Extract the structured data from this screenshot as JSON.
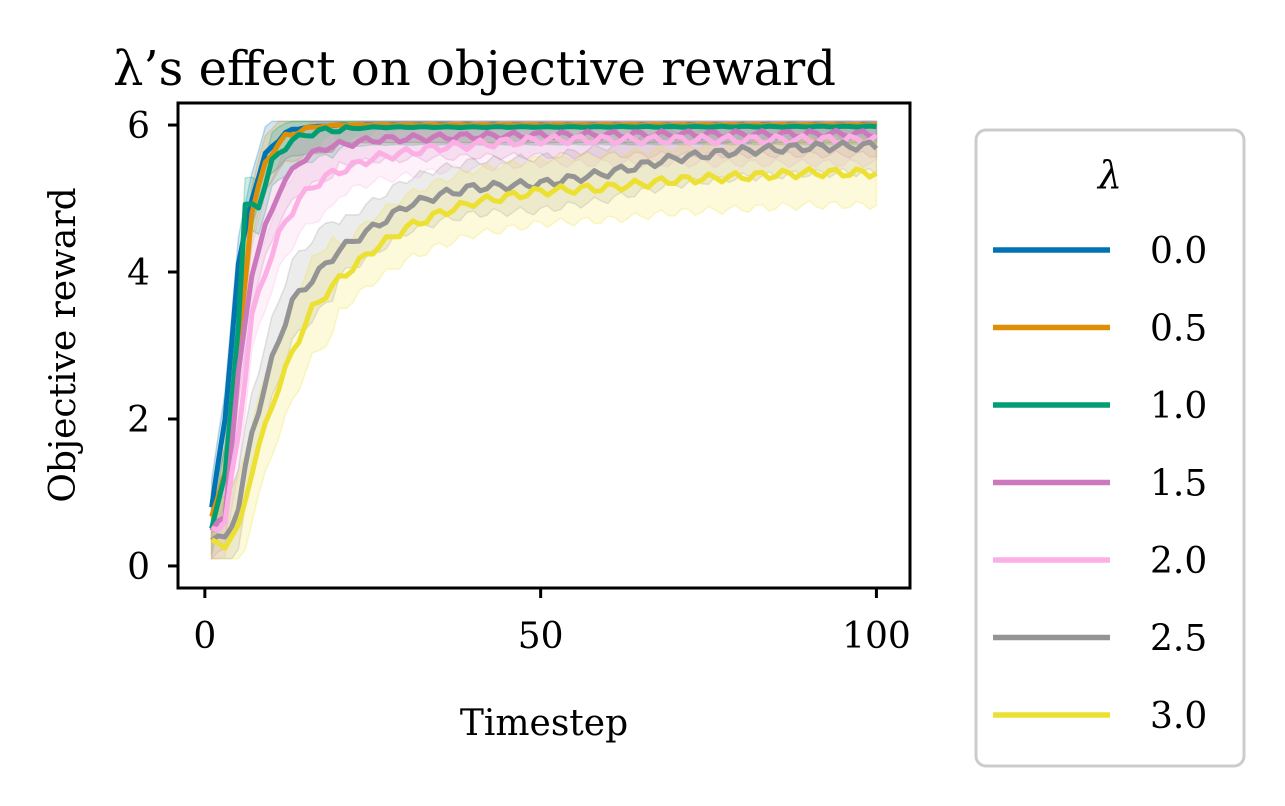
{
  "chart_data": {
    "type": "line",
    "title": "λ’s effect on objective reward",
    "xlabel": "Timestep",
    "ylabel": "Objective reward",
    "xlim": [
      -4,
      105
    ],
    "ylim": [
      -0.3,
      6.3
    ],
    "xticks": [
      0,
      50,
      100
    ],
    "yticks": [
      0,
      2,
      4,
      6
    ],
    "legend": {
      "title": "λ",
      "placement": "outside-right"
    },
    "shaded_band": true,
    "series": [
      {
        "name": "0.0",
        "color": "#0173b2",
        "points": [
          [
            1,
            0.8
          ],
          [
            3,
            2.0
          ],
          [
            5,
            4.1
          ],
          [
            7,
            5.0
          ],
          [
            9,
            5.6
          ],
          [
            12,
            5.9
          ],
          [
            15,
            5.97
          ],
          [
            20,
            6.0
          ],
          [
            100,
            6.0
          ]
        ],
        "band_width": 0.3
      },
      {
        "name": "0.5",
        "color": "#de8f05",
        "points": [
          [
            1,
            0.65
          ],
          [
            3,
            1.3
          ],
          [
            5,
            3.0
          ],
          [
            7,
            4.8
          ],
          [
            9,
            5.5
          ],
          [
            12,
            5.85
          ],
          [
            16,
            5.97
          ],
          [
            20,
            6.0
          ],
          [
            100,
            6.0
          ]
        ],
        "band_width": 0.3
      },
      {
        "name": "1.0",
        "color": "#029e73",
        "points": [
          [
            1,
            0.55
          ],
          [
            3,
            1.2
          ],
          [
            5,
            3.3
          ],
          [
            6,
            4.9
          ],
          [
            8,
            4.9
          ],
          [
            10,
            5.5
          ],
          [
            13,
            5.8
          ],
          [
            17,
            5.92
          ],
          [
            25,
            5.97
          ],
          [
            100,
            5.98
          ]
        ],
        "band_width": 0.3
      },
      {
        "name": "1.5",
        "color": "#cc78bc",
        "points": [
          [
            1,
            0.45
          ],
          [
            3,
            0.7
          ],
          [
            5,
            2.6
          ],
          [
            7,
            4.0
          ],
          [
            9,
            4.6
          ],
          [
            11,
            5.1
          ],
          [
            14,
            5.5
          ],
          [
            18,
            5.7
          ],
          [
            25,
            5.8
          ],
          [
            40,
            5.85
          ],
          [
            60,
            5.87
          ],
          [
            100,
            5.88
          ]
        ],
        "band_width": 0.35
      },
      {
        "name": "2.0",
        "color": "#fbafe4",
        "points": [
          [
            1,
            0.5
          ],
          [
            3,
            0.6
          ],
          [
            5,
            1.8
          ],
          [
            7,
            3.4
          ],
          [
            9,
            4.0
          ],
          [
            11,
            4.5
          ],
          [
            14,
            5.0
          ],
          [
            18,
            5.3
          ],
          [
            25,
            5.55
          ],
          [
            35,
            5.7
          ],
          [
            50,
            5.8
          ],
          [
            70,
            5.8
          ],
          [
            100,
            5.8
          ]
        ],
        "band_width": 0.4
      },
      {
        "name": "2.5",
        "color": "#949494",
        "points": [
          [
            1,
            0.4
          ],
          [
            3,
            0.35
          ],
          [
            5,
            0.8
          ],
          [
            7,
            1.8
          ],
          [
            10,
            2.8
          ],
          [
            13,
            3.6
          ],
          [
            16,
            3.9
          ],
          [
            20,
            4.3
          ],
          [
            25,
            4.6
          ],
          [
            30,
            4.9
          ],
          [
            35,
            5.05
          ],
          [
            40,
            5.15
          ],
          [
            50,
            5.2
          ],
          [
            60,
            5.35
          ],
          [
            70,
            5.55
          ],
          [
            80,
            5.65
          ],
          [
            90,
            5.7
          ],
          [
            100,
            5.72
          ]
        ],
        "band_width": 0.45
      },
      {
        "name": "3.0",
        "color": "#ece133",
        "points": [
          [
            1,
            0.3
          ],
          [
            3,
            0.3
          ],
          [
            5,
            0.5
          ],
          [
            7,
            1.3
          ],
          [
            10,
            2.2
          ],
          [
            13,
            2.9
          ],
          [
            16,
            3.5
          ],
          [
            20,
            3.9
          ],
          [
            25,
            4.3
          ],
          [
            30,
            4.6
          ],
          [
            35,
            4.8
          ],
          [
            40,
            4.95
          ],
          [
            50,
            5.1
          ],
          [
            60,
            5.15
          ],
          [
            70,
            5.25
          ],
          [
            80,
            5.3
          ],
          [
            90,
            5.35
          ],
          [
            100,
            5.35
          ]
        ],
        "band_width": 0.55
      }
    ]
  }
}
